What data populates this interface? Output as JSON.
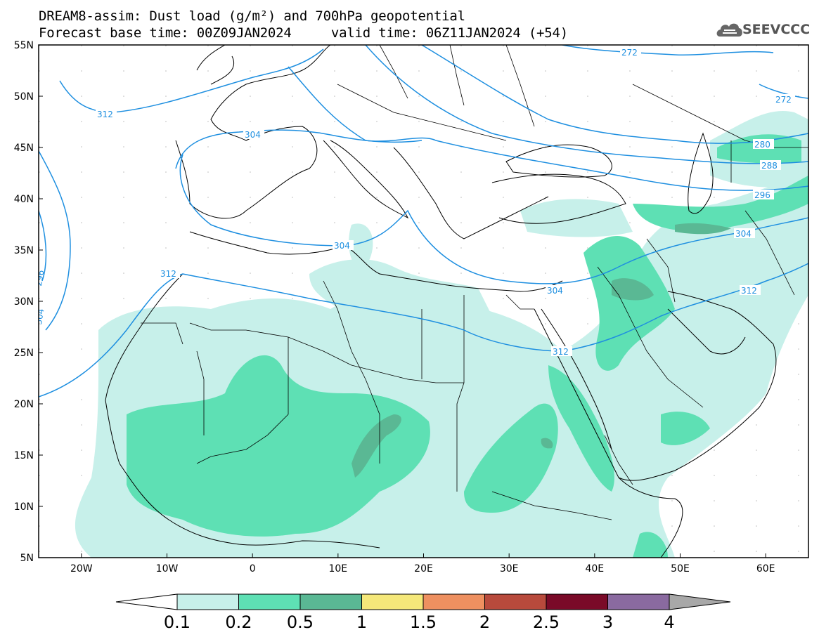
{
  "title": {
    "line1": "DREAM8-assim: Dust load (g/m²) and 700hPa geopotential",
    "line2": "Forecast base time: 00Z09JAN2024     valid time: 06Z11JAN2024 (+54)"
  },
  "logo": {
    "text": "SEEVCCC",
    "icon": "cloud-icon"
  },
  "map": {
    "lat_range": [
      5,
      55
    ],
    "lon_range": [
      -25,
      65
    ],
    "lat_labels": [
      "55N",
      "50N",
      "45N",
      "40N",
      "35N",
      "30N",
      "25N",
      "20N",
      "15N",
      "10N",
      "5N"
    ],
    "lon_labels": [
      "20W",
      "10W",
      "0",
      "10E",
      "20E",
      "30E",
      "40E",
      "50E",
      "60E"
    ]
  },
  "contours": {
    "color": "#1e8fe0",
    "labels": [
      {
        "text": "272"
      },
      {
        "text": "272"
      },
      {
        "text": "280"
      },
      {
        "text": "288"
      },
      {
        "text": "296"
      },
      {
        "text": "304"
      },
      {
        "text": "304"
      },
      {
        "text": "304"
      },
      {
        "text": "304"
      },
      {
        "text": "296"
      },
      {
        "text": "312"
      },
      {
        "text": "312"
      },
      {
        "text": "312"
      },
      {
        "text": "312"
      },
      {
        "text": "304"
      }
    ]
  },
  "colorbar": {
    "labels": [
      "0.1",
      "0.2",
      "0.5",
      "1",
      "1.5",
      "2",
      "2.5",
      "3",
      "4"
    ],
    "colors": [
      "#c7f0ea",
      "#5ee0b4",
      "#5ab894",
      "#f5e87a",
      "#ee9060",
      "#b84a3c",
      "#7a0a28",
      "#8a6aa0"
    ],
    "low_color": "#ffffff",
    "high_color": "#a8a8a8"
  },
  "dust_colors": {
    "low": "#c7f0ea",
    "mid": "#5ee0b4",
    "high": "#5ab894"
  }
}
